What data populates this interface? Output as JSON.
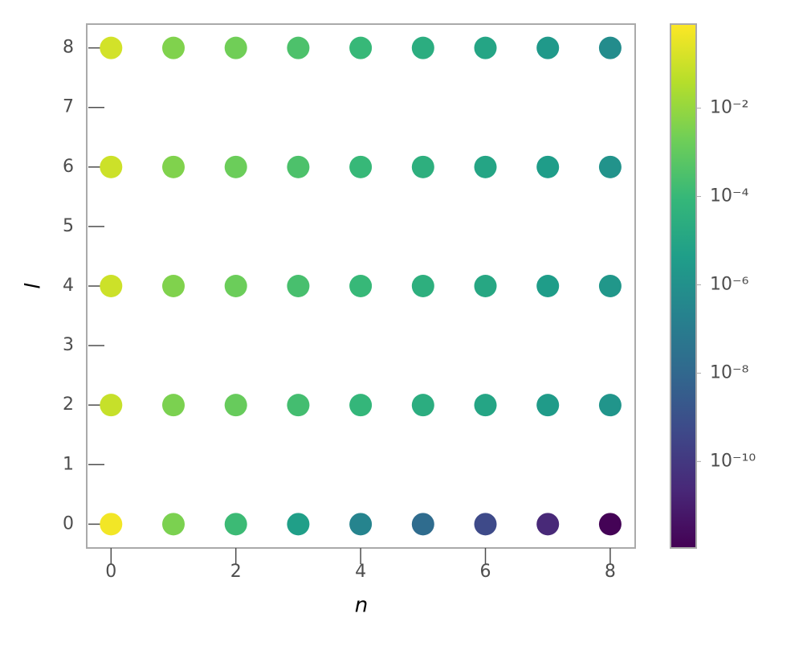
{
  "chart_data": {
    "type": "scatter",
    "x_label": "n",
    "y_label": "l",
    "x": [
      0,
      1,
      2,
      3,
      4,
      5,
      6,
      7,
      8,
      0,
      1,
      2,
      3,
      4,
      5,
      6,
      7,
      8,
      0,
      1,
      2,
      3,
      4,
      5,
      6,
      7,
      8,
      0,
      1,
      2,
      3,
      4,
      5,
      6,
      7,
      8,
      0,
      1,
      2,
      3,
      4,
      5,
      6,
      7,
      8
    ],
    "y": [
      0,
      0,
      0,
      0,
      0,
      0,
      0,
      0,
      0,
      2,
      2,
      2,
      2,
      2,
      2,
      2,
      2,
      2,
      4,
      4,
      4,
      4,
      4,
      4,
      4,
      4,
      4,
      6,
      6,
      6,
      6,
      6,
      6,
      6,
      6,
      6,
      8,
      8,
      8,
      8,
      8,
      8,
      8,
      8,
      8
    ],
    "c": [
      0.5,
      0.0032,
      0.00013,
      5e-06,
      2.5e-07,
      1.6e-08,
      5e-10,
      2.5e-11,
      1.3e-12,
      0.08,
      0.0032,
      0.0013,
      0.0002,
      8e-05,
      2.5e-05,
      1e-05,
      3.2e-06,
      1.6e-06,
      0.1,
      0.004,
      0.0016,
      0.00025,
      0.0001,
      3.2e-05,
      1.3e-05,
      4e-06,
      2e-06,
      0.1,
      0.004,
      0.0016,
      0.00032,
      0.0001,
      3.2e-05,
      1e-05,
      4e-06,
      1.3e-06,
      0.13,
      0.004,
      0.002,
      0.00032,
      0.0001,
      2.5e-05,
      1e-05,
      2.5e-06,
      6.3e-07
    ],
    "colormap": "viridis",
    "color_log_scale": true,
    "clim": [
      1.1e-12,
      0.8
    ],
    "cticks": [
      {
        "value": 0.01,
        "label": "10⁻²"
      },
      {
        "value": 0.0001,
        "label": "10⁻⁴"
      },
      {
        "value": 1e-06,
        "label": "10⁻⁶"
      },
      {
        "value": 1e-08,
        "label": "10⁻⁸"
      },
      {
        "value": 1e-10,
        "label": "10⁻¹⁰"
      }
    ],
    "xlim": [
      -0.39,
      8.4
    ],
    "ylim": [
      -0.4,
      8.4
    ],
    "xticks": [
      0,
      2,
      4,
      6,
      8
    ],
    "yticks": [
      0,
      1,
      2,
      3,
      4,
      5,
      6,
      7,
      8
    ]
  }
}
